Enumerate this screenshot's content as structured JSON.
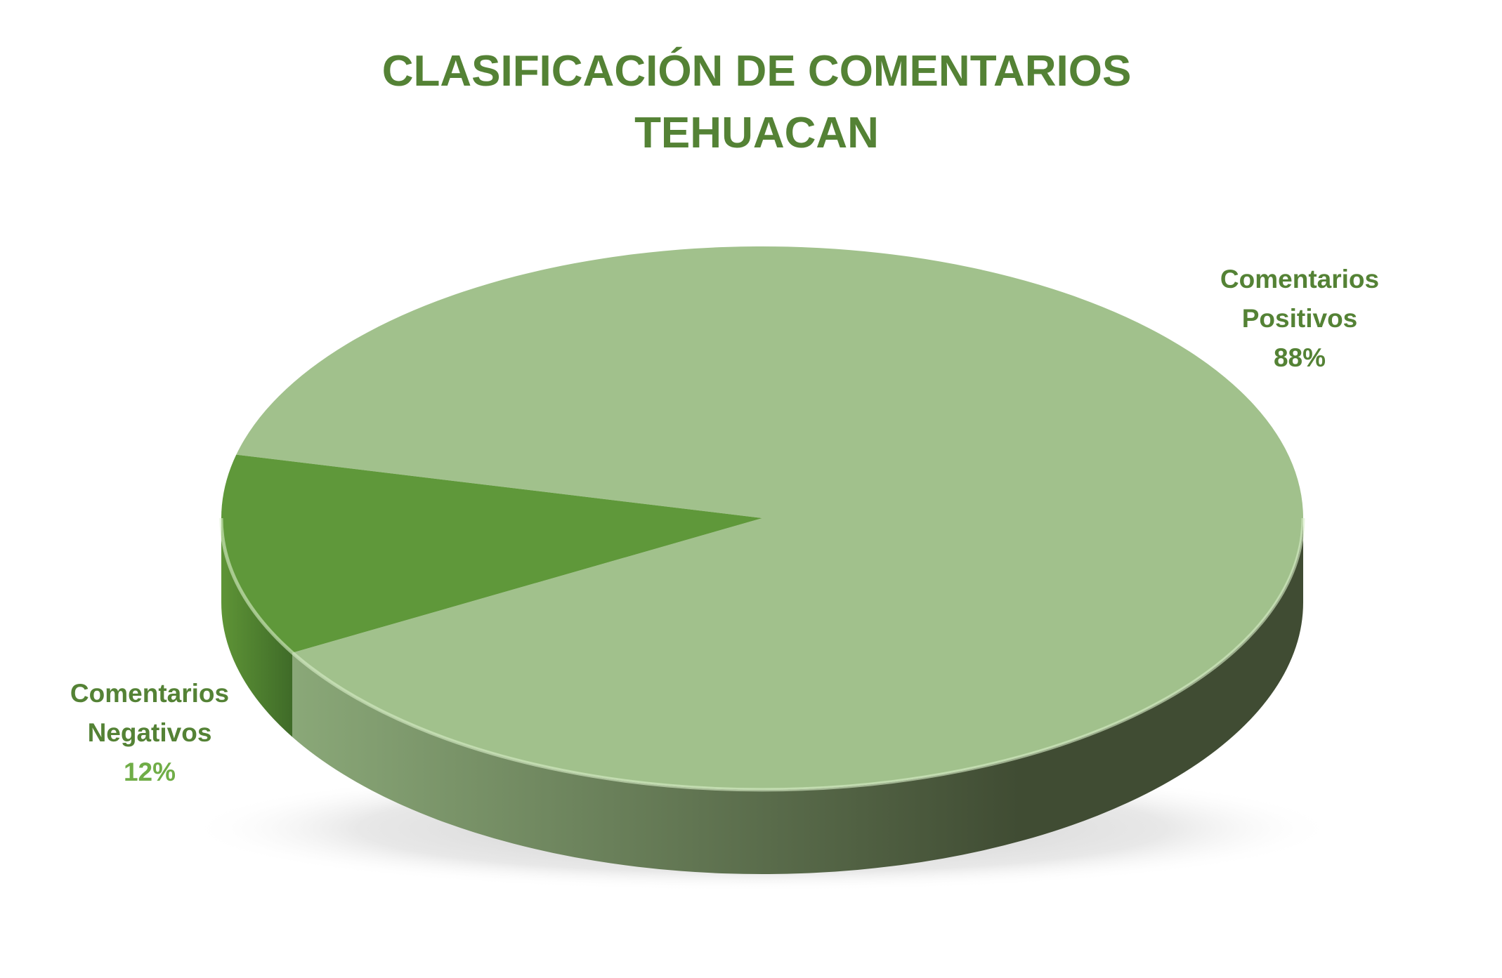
{
  "chart_data": {
    "type": "pie",
    "style": "3d",
    "title_lines": [
      "CLASIFICACIÓN DE COMENTARIOS",
      "TEHUACAN"
    ],
    "slices": [
      {
        "category_lines": [
          "Comentarios",
          "Positivos"
        ],
        "value": 88,
        "value_label": "88%",
        "color": "#a1c18c",
        "label_color": "#548235",
        "value_color": "#548235"
      },
      {
        "category_lines": [
          "Comentarios",
          "Negativos"
        ],
        "value": 12,
        "value_label": "12%",
        "color": "#5f983a",
        "label_color": "#548235",
        "value_color": "#70ad47"
      }
    ],
    "legend": "none",
    "colors": {
      "title": "#548235",
      "side_light": "#8aa878",
      "side_dark": "#404c33"
    }
  }
}
